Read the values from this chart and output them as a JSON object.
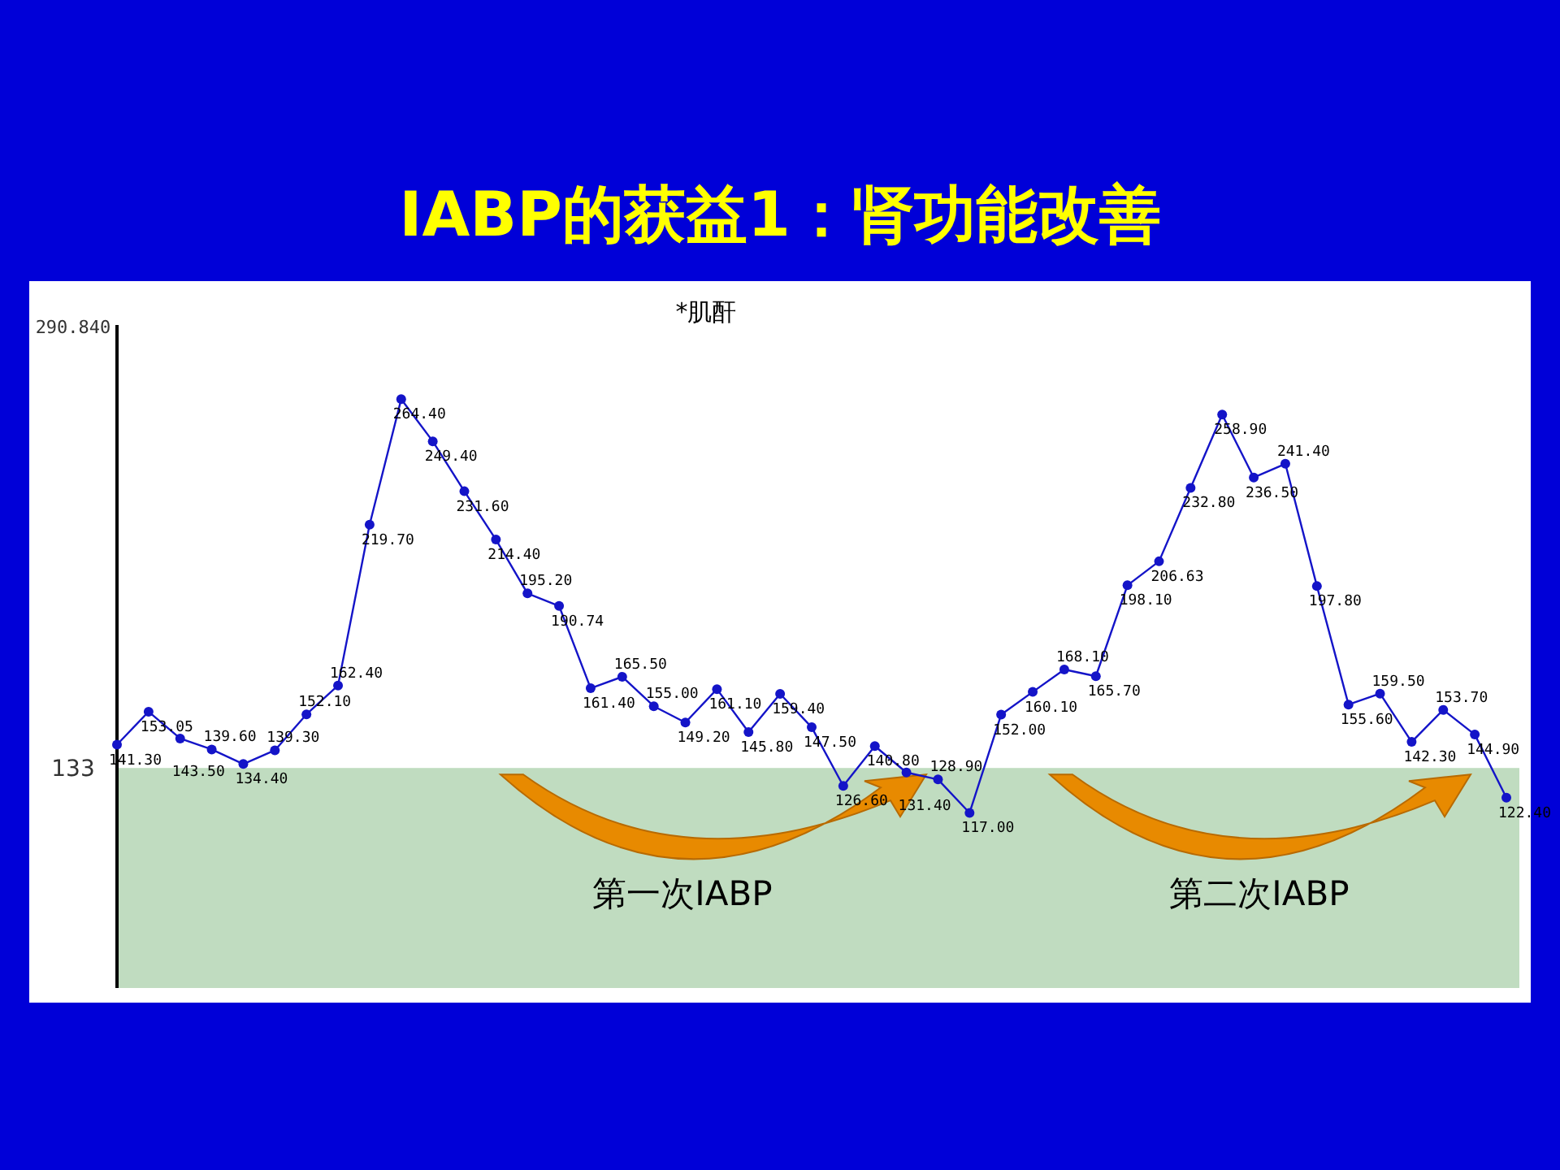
{
  "chart_data": {
    "type": "line",
    "title": "IABP的获益1：肾功能改善",
    "subtitle": "*肌酐",
    "categories": [
      null,
      null,
      null,
      null,
      null,
      null,
      null,
      null,
      null,
      null,
      null,
      null,
      null,
      null,
      null,
      null,
      null,
      null,
      null,
      null,
      null,
      null,
      null,
      null,
      null,
      null,
      null,
      null,
      null,
      null,
      null,
      null,
      null,
      null,
      null,
      null,
      null,
      null,
      null,
      null,
      null,
      null,
      null,
      null,
      null
    ],
    "values": [
      141.3,
      153.05,
      143.5,
      139.6,
      134.4,
      139.3,
      152.1,
      162.4,
      219.7,
      264.4,
      249.4,
      231.6,
      214.4,
      195.2,
      190.74,
      161.4,
      165.5,
      155.0,
      149.2,
      161.1,
      145.8,
      159.4,
      147.5,
      126.6,
      140.8,
      131.4,
      128.9,
      117.0,
      152.0,
      160.1,
      168.1,
      165.7,
      198.1,
      206.63,
      232.8,
      258.9,
      236.5,
      241.4,
      197.8,
      155.6,
      159.5,
      142.3,
      153.7,
      144.9,
      122.4
    ],
    "value_labels": [
      "141.30",
      "153.05",
      "143.50",
      "139.60",
      "134.40",
      "139.30",
      "152.10",
      "162.40",
      "219.70",
      "264.40",
      "249.40",
      "231.60",
      "214.40",
      "195.20",
      "190.74",
      "161.40",
      "165.50",
      "155.00",
      "149.20",
      "161.10",
      "145.80",
      "159.40",
      "147.50",
      "126.60",
      "140.80",
      "131.40",
      "128.90",
      "117.00",
      "152.00",
      "160.10",
      "168.10",
      "165.70",
      "198.10",
      "206.63",
      "232.80",
      "258.90",
      "236.50",
      "241.40",
      "197.80",
      "155.60",
      "159.50",
      "142.30",
      "153.70",
      "144.90",
      "122.40"
    ],
    "color": "#1414c8",
    "marker": "circle",
    "ylim": [
      54.6,
      290.84
    ],
    "yticks": [
      {
        "value": 290.84,
        "label": "290.840"
      },
      133
    ],
    "bands": [
      {
        "axis": "y",
        "from": 54.6,
        "to": 133,
        "color": "#c0dcc0"
      }
    ],
    "annotations": [
      "第一次IABP",
      "第二次IABP"
    ]
  }
}
